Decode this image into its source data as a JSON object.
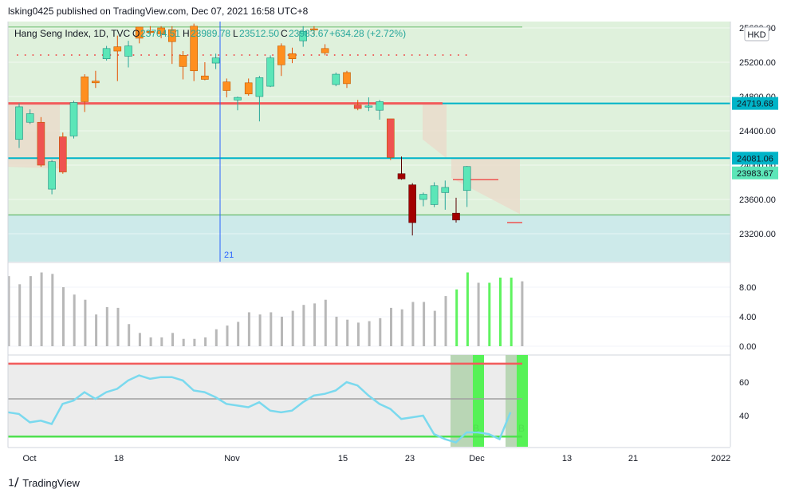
{
  "header": {
    "published": "lsking0425 published on TradingView.com, Dec 07, 2021 16:58 UTC+8"
  },
  "legend": {
    "symbol": "Hang Seng Index, 1D, TVC",
    "o_label": "O",
    "o": "23704.51",
    "h_label": "H",
    "h": "23989.78",
    "l_label": "L",
    "l": "23512.50",
    "c_label": "C",
    "c": "23983.67",
    "change": "+634.28 (+2.72%)"
  },
  "currency": "HKD",
  "footer": {
    "brand": "TradingView"
  },
  "colors": {
    "up": "#5ce6b8",
    "down": "#ef5350",
    "orange": "#ff8f1f",
    "darkred": "#a30000",
    "teal_line": "#00b4c8",
    "red_line": "#f25b5b",
    "volume": "#b8b8b8",
    "volume_highlight": "#5ff35f",
    "rsi": "#7ad9ee",
    "zone_green": "#dff1dc",
    "zone_teal": "#cdeaea"
  },
  "chart_data": [
    {
      "type": "candlestick",
      "name": "price",
      "ylim": [
        22870,
        25580
      ],
      "price_labels": [
        "25600.00",
        "25200.00",
        "24800.00",
        "24400.00",
        "24000.00",
        "23600.00",
        "23200.00"
      ],
      "level_lines": [
        {
          "value": 24719.68,
          "label": "24719.68",
          "color": "#00b4c8"
        },
        {
          "value": 24081.06,
          "label": "24081.06",
          "color": "#00b4c8"
        }
      ],
      "last_price": {
        "value": 23983.67,
        "label": "23983.67"
      },
      "vertical_marker": {
        "label": "21"
      },
      "x_axis": {
        "labels": [
          "Oct",
          "18",
          "Nov",
          "15",
          "23",
          "Dec",
          "13",
          "21",
          "2022"
        ]
      },
      "candles": [
        {
          "o": 24300,
          "h": 24720,
          "l": 24200,
          "c": 24680,
          "k": "up"
        },
        {
          "o": 24600,
          "h": 24650,
          "l": 24480,
          "c": 24500,
          "k": "up"
        },
        {
          "o": 24500,
          "h": 24560,
          "l": 23980,
          "c": 24000,
          "k": "down"
        },
        {
          "o": 23720,
          "h": 24060,
          "l": 23660,
          "c": 24040,
          "k": "up"
        },
        {
          "o": 24330,
          "h": 24380,
          "l": 23900,
          "c": 23920,
          "k": "down"
        },
        {
          "o": 24340,
          "h": 24750,
          "l": 24310,
          "c": 24730,
          "k": "up"
        },
        {
          "o": 24740,
          "h": 25060,
          "l": 24620,
          "c": 25030,
          "k": "orange"
        },
        {
          "o": 24980,
          "h": 25100,
          "l": 24900,
          "c": 24960,
          "k": "orange"
        },
        {
          "o": 25240,
          "h": 25390,
          "l": 25220,
          "c": 25360,
          "k": "up"
        },
        {
          "o": 25380,
          "h": 25510,
          "l": 24980,
          "c": 25330,
          "k": "orange"
        },
        {
          "o": 25270,
          "h": 25450,
          "l": 25140,
          "c": 25390,
          "k": "up"
        },
        {
          "o": 25480,
          "h": 25600,
          "l": 25420,
          "c": 25610,
          "k": "orange"
        },
        {
          "o": 25560,
          "h": 25620,
          "l": 25520,
          "c": 25550,
          "k": "orange"
        },
        {
          "o": 25600,
          "h": 25620,
          "l": 25480,
          "c": 25530,
          "k": "orange"
        },
        {
          "o": 25580,
          "h": 25620,
          "l": 25180,
          "c": 25440,
          "k": "orange"
        },
        {
          "o": 25280,
          "h": 25330,
          "l": 25000,
          "c": 25150,
          "k": "orange"
        },
        {
          "o": 25620,
          "h": 25650,
          "l": 24980,
          "c": 25100,
          "k": "orange"
        },
        {
          "o": 25040,
          "h": 25200,
          "l": 24990,
          "c": 25000,
          "k": "orange"
        },
        {
          "o": 25190,
          "h": 25300,
          "l": 25120,
          "c": 25250,
          "k": "up"
        },
        {
          "o": 24970,
          "h": 25010,
          "l": 24790,
          "c": 24870,
          "k": "orange"
        },
        {
          "o": 24760,
          "h": 24800,
          "l": 24640,
          "c": 24790,
          "k": "up"
        },
        {
          "o": 24960,
          "h": 25010,
          "l": 24810,
          "c": 24830,
          "k": "orange"
        },
        {
          "o": 24800,
          "h": 25040,
          "l": 24510,
          "c": 25020,
          "k": "up"
        },
        {
          "o": 24920,
          "h": 25280,
          "l": 24910,
          "c": 25250,
          "k": "up"
        },
        {
          "o": 25390,
          "h": 25420,
          "l": 25040,
          "c": 25170,
          "k": "orange"
        },
        {
          "o": 25240,
          "h": 25370,
          "l": 25190,
          "c": 25300,
          "k": "orange"
        },
        {
          "o": 25450,
          "h": 25620,
          "l": 25380,
          "c": 25560,
          "k": "up"
        },
        {
          "o": 25580,
          "h": 25620,
          "l": 25520,
          "c": 25590,
          "k": "orange"
        },
        {
          "o": 25360,
          "h": 25410,
          "l": 25280,
          "c": 25310,
          "k": "orange"
        },
        {
          "o": 24940,
          "h": 25080,
          "l": 24920,
          "c": 25060,
          "k": "up"
        },
        {
          "o": 25080,
          "h": 25100,
          "l": 24900,
          "c": 24950,
          "k": "orange"
        },
        {
          "o": 24700,
          "h": 24760,
          "l": 24640,
          "c": 24660,
          "k": "down"
        },
        {
          "o": 24680,
          "h": 24790,
          "l": 24630,
          "c": 24690,
          "k": "up"
        },
        {
          "o": 24640,
          "h": 24760,
          "l": 24530,
          "c": 24740,
          "k": "up"
        },
        {
          "o": 24540,
          "h": 24540,
          "l": 24060,
          "c": 24090,
          "k": "down"
        },
        {
          "o": 23900,
          "h": 24100,
          "l": 23830,
          "c": 23840,
          "k": "darkred"
        },
        {
          "o": 23770,
          "h": 23790,
          "l": 23180,
          "c": 23330,
          "k": "darkred"
        },
        {
          "o": 23600,
          "h": 23680,
          "l": 23520,
          "c": 23660,
          "k": "up"
        },
        {
          "o": 23540,
          "h": 23800,
          "l": 23510,
          "c": 23760,
          "k": "up"
        },
        {
          "o": 23740,
          "h": 23820,
          "l": 23480,
          "c": 23680,
          "k": "up"
        },
        {
          "o": 23440,
          "h": 23620,
          "l": 23330,
          "c": 23360,
          "k": "darkred"
        },
        {
          "o": 23704.51,
          "h": 23989.78,
          "l": 23512.5,
          "c": 23983.67,
          "k": "up"
        }
      ]
    },
    {
      "type": "bar",
      "name": "volume",
      "ylim": [
        0,
        10.5
      ],
      "tick_labels": [
        "8.00",
        "4.00",
        "0.00"
      ],
      "values": [
        9.5,
        8.4,
        9.5,
        10,
        9.8,
        8,
        7,
        6.3,
        4.3,
        5.3,
        5.2,
        3,
        1.8,
        1.2,
        1.2,
        1.8,
        1,
        1,
        1.2,
        2.3,
        2.8,
        3.3,
        4.6,
        4.3,
        4.6,
        4,
        4.8,
        5.6,
        5.8,
        6.3,
        4,
        3.6,
        3.2,
        3.4,
        3.8,
        5.2,
        5,
        6,
        6,
        4.8,
        6.8,
        7.7,
        10,
        8.6,
        8.6,
        9.3,
        9.3,
        8.8
      ],
      "highlight": [
        false,
        false,
        false,
        false,
        false,
        false,
        false,
        false,
        false,
        false,
        false,
        false,
        false,
        false,
        false,
        false,
        false,
        false,
        false,
        false,
        false,
        false,
        false,
        false,
        false,
        false,
        false,
        false,
        false,
        false,
        false,
        false,
        false,
        false,
        false,
        false,
        false,
        false,
        false,
        false,
        false,
        true,
        true,
        false,
        true,
        true,
        true,
        false
      ]
    },
    {
      "type": "line",
      "name": "oscillator",
      "ylim": [
        18,
        78
      ],
      "tick_labels": [
        "60",
        "40"
      ],
      "bands": [
        {
          "value": 71,
          "color": "#f25b5b"
        },
        {
          "value": 50,
          "color": "#a0a0a0"
        },
        {
          "value": 27.5,
          "color": "#4fe04f"
        }
      ],
      "marker_label": "B",
      "values": [
        42,
        41,
        36,
        37,
        35,
        47,
        49,
        54,
        50,
        54,
        56,
        61,
        64,
        62,
        63,
        63,
        61,
        55,
        54,
        51,
        47,
        46,
        45,
        48,
        43,
        42,
        43,
        48,
        52,
        53,
        55,
        60,
        58,
        52,
        47,
        44,
        38,
        39,
        40,
        29,
        26,
        24,
        30,
        30,
        29,
        26,
        42
      ]
    }
  ]
}
